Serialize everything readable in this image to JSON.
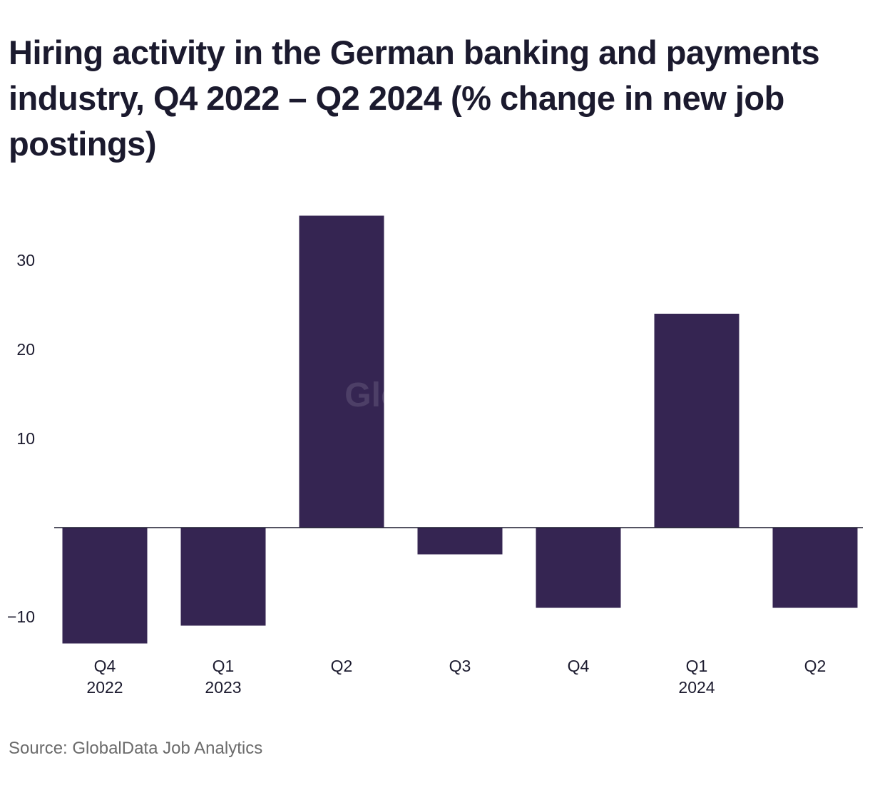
{
  "title": "Hiring activity in the German banking and payments industry, Q4 2022 – Q2 2024 (% change in new job postings)",
  "source": "Source: GlobalData Job Analytics",
  "watermark": "GlobalData",
  "colors": {
    "bar": "#352552",
    "text": "#1b1a2e",
    "source_text": "#6b6b6b",
    "baseline": "#1b1a2e"
  },
  "chart_data": {
    "type": "bar",
    "title": "Hiring activity in the German banking and payments industry, Q4 2022 – Q2 2024 (% change in new job postings)",
    "xlabel": "",
    "ylabel": "",
    "categories": [
      {
        "quarter": "Q4",
        "year": "2022"
      },
      {
        "quarter": "Q1",
        "year": "2023"
      },
      {
        "quarter": "Q2",
        "year": ""
      },
      {
        "quarter": "Q3",
        "year": ""
      },
      {
        "quarter": "Q4",
        "year": ""
      },
      {
        "quarter": "Q1",
        "year": "2024"
      },
      {
        "quarter": "Q2",
        "year": ""
      }
    ],
    "values": [
      -13,
      -11,
      35,
      -3,
      -9,
      24,
      -9
    ],
    "yticks": [
      -10,
      10,
      20,
      30
    ],
    "ytick_labels": [
      "−10",
      "10",
      "20",
      "30"
    ],
    "ylim": [
      -13,
      35
    ],
    "grid": false,
    "legend": "none"
  }
}
